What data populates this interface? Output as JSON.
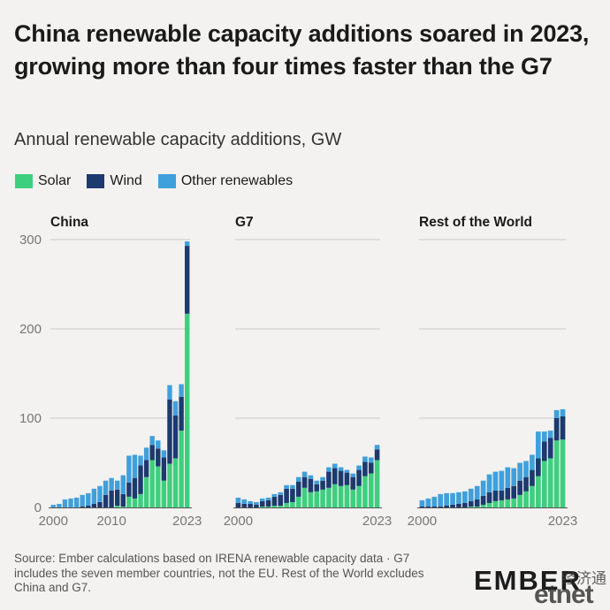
{
  "title": "China renewable capacity additions soared in 2023, growing more than four times faster than the G7",
  "subtitle": "Annual renewable capacity additions, GW",
  "colors": {
    "solar": "#3ecf7e",
    "wind": "#1c3a6e",
    "other": "#3fa0dc",
    "grid": "#c9c9c9",
    "text": "#1a1a1a",
    "axis": "#777777"
  },
  "legend": [
    {
      "label": "Solar",
      "color": "#3ecf7e"
    },
    {
      "label": "Wind",
      "color": "#1c3a6e"
    },
    {
      "label": "Other renewables",
      "color": "#3fa0dc"
    }
  ],
  "source": "Source: Ember calculations based on IRENA renewable capacity data · G7 includes the seven member countries, not the EU. Rest of the World excludes China and G7.",
  "logo": "EMBER",
  "watermark": {
    "cn": "经济通",
    "en": "etnet"
  },
  "chart_data": {
    "type": "bar",
    "stacked": true,
    "ylim": [
      0,
      300
    ],
    "yticks": [
      0,
      100,
      200,
      300
    ],
    "series_names": [
      "Solar",
      "Wind",
      "Other renewables"
    ],
    "panels": [
      {
        "name": "China",
        "xticks": [
          "2000",
          "2010",
          "2023"
        ],
        "years": [
          2000,
          2001,
          2002,
          2003,
          2004,
          2005,
          2006,
          2007,
          2008,
          2009,
          2010,
          2011,
          2012,
          2013,
          2014,
          2015,
          2016,
          2017,
          2018,
          2019,
          2020,
          2021,
          2022,
          2023
        ],
        "solar": [
          0,
          0,
          0,
          0,
          0,
          0,
          0,
          0,
          0,
          0,
          0,
          2,
          1,
          12,
          10,
          15,
          34,
          53,
          46,
          30,
          49,
          55,
          86,
          217
        ],
        "wind": [
          0,
          0,
          0,
          0,
          0,
          1,
          2,
          4,
          6,
          14,
          19,
          18,
          14,
          16,
          23,
          32,
          19,
          17,
          20,
          26,
          72,
          48,
          38,
          76
        ],
        "other": [
          3,
          4,
          9,
          10,
          11,
          13,
          14,
          17,
          18,
          16,
          14,
          10,
          21,
          30,
          26,
          11,
          14,
          10,
          9,
          8,
          16,
          16,
          14,
          5
        ]
      },
      {
        "name": "G7",
        "xticks": [
          "2000",
          "2023"
        ],
        "years": [
          2000,
          2001,
          2002,
          2003,
          2004,
          2005,
          2006,
          2007,
          2008,
          2009,
          2010,
          2011,
          2012,
          2013,
          2014,
          2015,
          2016,
          2017,
          2018,
          2019,
          2020,
          2021,
          2022,
          2023
        ],
        "solar": [
          0,
          0,
          0,
          0,
          1,
          1,
          2,
          2,
          5,
          6,
          12,
          22,
          17,
          18,
          20,
          22,
          26,
          24,
          25,
          20,
          24,
          35,
          38,
          53
        ],
        "wind": [
          5,
          4,
          4,
          3,
          6,
          7,
          10,
          12,
          16,
          15,
          17,
          12,
          15,
          8,
          10,
          18,
          18,
          17,
          14,
          14,
          18,
          16,
          12,
          12
        ],
        "other": [
          6,
          5,
          3,
          3,
          3,
          3,
          3,
          3,
          4,
          4,
          5,
          6,
          4,
          4,
          4,
          5,
          5,
          4,
          3,
          4,
          5,
          6,
          6,
          5
        ]
      },
      {
        "name": "Rest of the World",
        "xticks": [
          "2000",
          "2023"
        ],
        "years": [
          2000,
          2001,
          2002,
          2003,
          2004,
          2005,
          2006,
          2007,
          2008,
          2009,
          2010,
          2011,
          2012,
          2013,
          2014,
          2015,
          2016,
          2017,
          2018,
          2019,
          2020,
          2021,
          2022,
          2023
        ],
        "solar": [
          0,
          0,
          0,
          0,
          0,
          0,
          0,
          0,
          1,
          1,
          3,
          5,
          7,
          8,
          9,
          10,
          14,
          18,
          24,
          35,
          52,
          55,
          75,
          76
        ],
        "wind": [
          1,
          1,
          1,
          1,
          2,
          3,
          4,
          5,
          6,
          8,
          10,
          12,
          12,
          11,
          13,
          14,
          16,
          16,
          18,
          20,
          22,
          23,
          25,
          26
        ],
        "other": [
          7,
          9,
          11,
          14,
          14,
          13,
          13,
          13,
          14,
          15,
          17,
          20,
          21,
          22,
          23,
          20,
          20,
          18,
          17,
          30,
          11,
          8,
          9,
          8
        ]
      }
    ]
  }
}
